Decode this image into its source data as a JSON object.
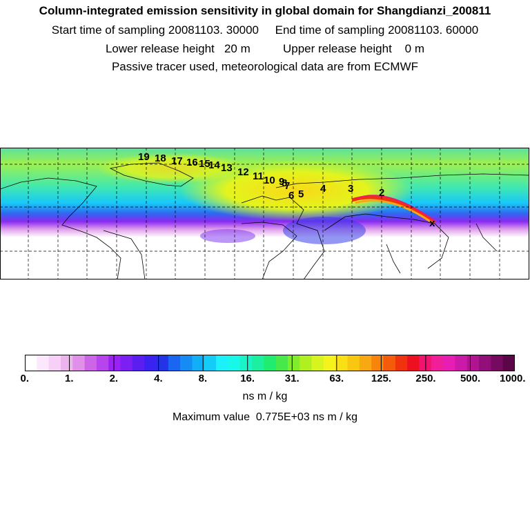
{
  "header": {
    "title": "Column-integrated emission sensitivity in global domain for Shangdianzi_200811",
    "sampling": "Start time of sampling 20081103. 30000     End time of sampling 20081103. 60000",
    "release": "Lower release height   20 m          Upper release height    0 m",
    "tracer": "Passive tracer used, meteorological data are from ECMWF"
  },
  "map": {
    "trajectory_labels": [
      "2",
      "3",
      "4",
      "5",
      "6",
      "7",
      "8",
      "9",
      "10",
      "11",
      "12",
      "13",
      "14",
      "15",
      "16",
      "17",
      "18",
      "19"
    ],
    "release_marker": "x"
  },
  "colorbar": {
    "tick_labels": [
      "0.",
      "1.",
      "2.",
      "4.",
      "8.",
      "16.",
      "31.",
      "63.",
      "125.",
      "250.",
      "500.",
      "1000."
    ],
    "unit": "ns m / kg",
    "colors": [
      "#ffffff",
      "#fce8fc",
      "#f6d0f6",
      "#ecb4ec",
      "#e090e8",
      "#cc66e6",
      "#b844ee",
      "#9a22f4",
      "#7c1ff2",
      "#5a1ff0",
      "#3a22f0",
      "#2233e8",
      "#1a66f0",
      "#148cf4",
      "#12aef6",
      "#14ccf8",
      "#1cf0fa",
      "#18f8e8",
      "#18f4c8",
      "#1af0a0",
      "#20ec70",
      "#46e84a",
      "#80ec2c",
      "#b0f020",
      "#d8f41e",
      "#f4f41c",
      "#f8e014",
      "#f8c810",
      "#f8a810",
      "#f8840c",
      "#f45c0c",
      "#f0320e",
      "#ec1020",
      "#f01470",
      "#f01e98",
      "#e81eb4",
      "#cc1aa8",
      "#b01490",
      "#920e78",
      "#760a60",
      "#5a0648"
    ]
  },
  "footer": {
    "max_value": "Maximum value  0.775E+03 ns m / kg"
  }
}
